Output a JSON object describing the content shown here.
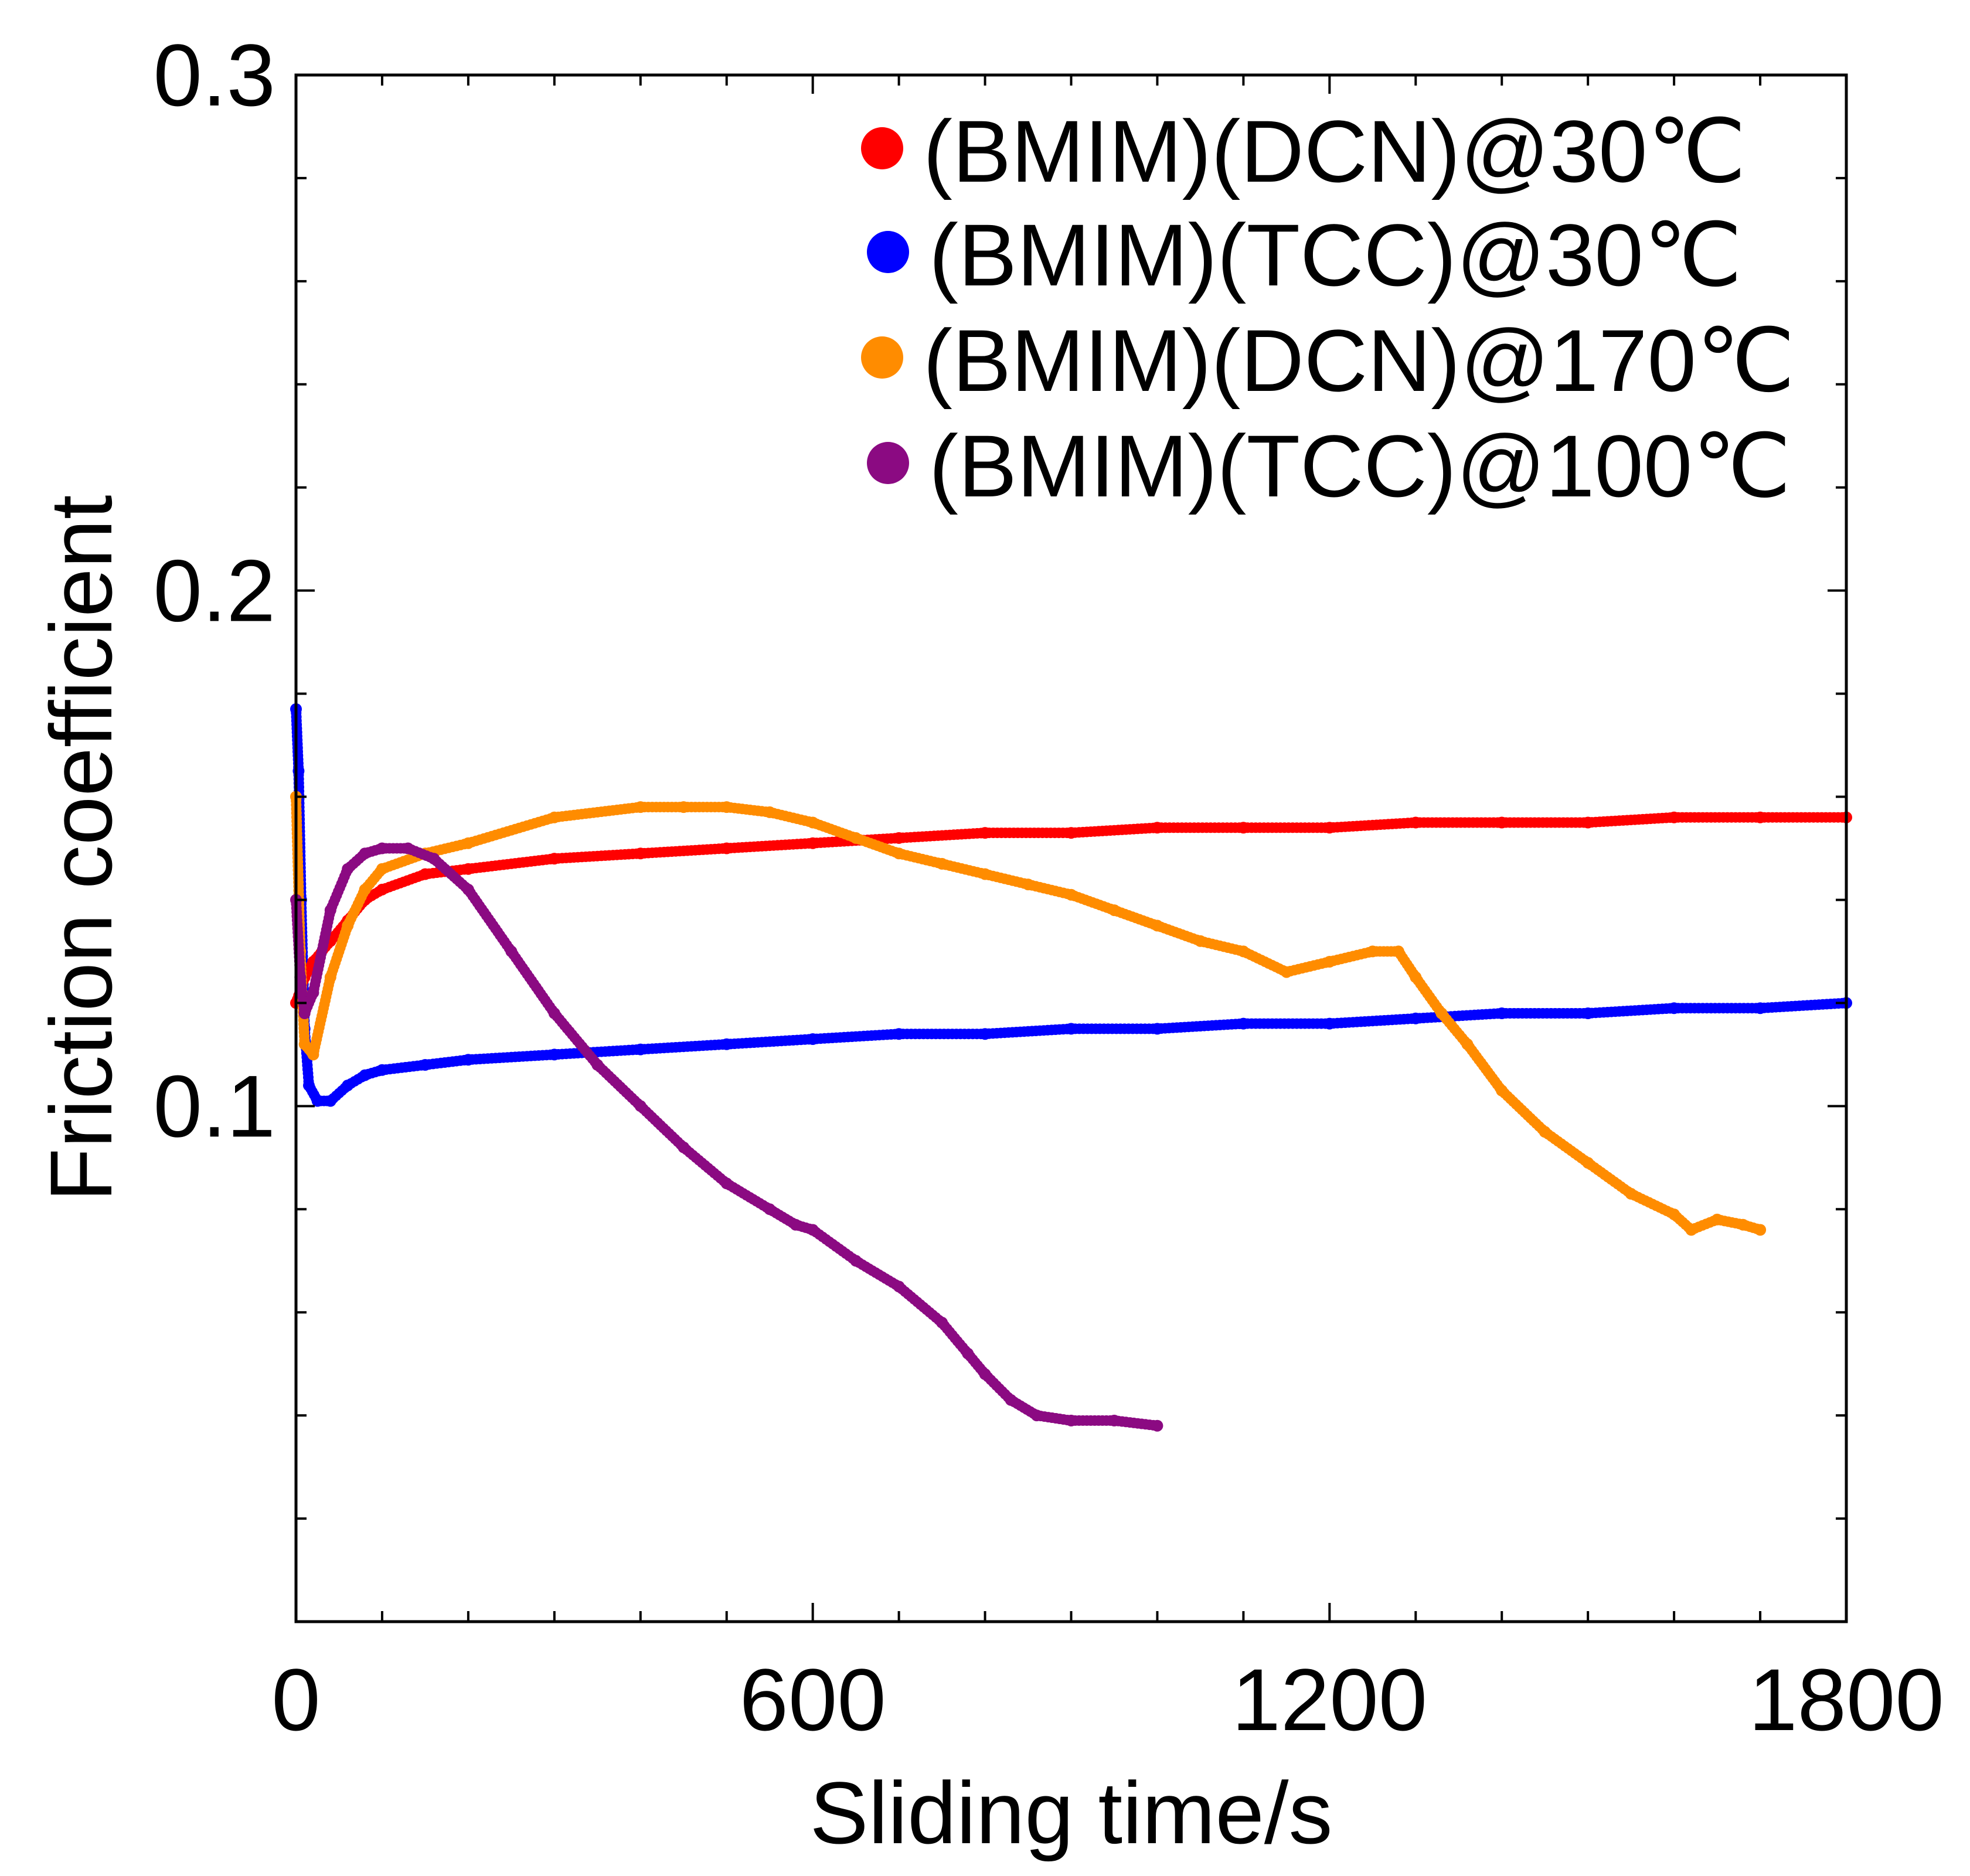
{
  "chart_data": {
    "type": "scatter",
    "title": "",
    "xlabel": "Sliding time/s",
    "ylabel": "Friction coefficient",
    "xlim": [
      0,
      1800
    ],
    "ylim": [
      0.0,
      0.3
    ],
    "x_ticks": [
      0,
      600,
      1200,
      1800
    ],
    "x_tick_labels": [
      "0",
      "600",
      "1200",
      "1800"
    ],
    "y_ticks": [
      0.1,
      0.2,
      0.3
    ],
    "y_tick_labels": [
      "0.1",
      "0.2",
      "0.3"
    ],
    "grid": false,
    "legend_position": "top-right",
    "series": [
      {
        "name": "(BMIM)(DCN)@30℃",
        "color": "#ff0000",
        "points": [
          [
            0,
            0.12
          ],
          [
            10,
            0.125
          ],
          [
            20,
            0.128
          ],
          [
            40,
            0.132
          ],
          [
            60,
            0.136
          ],
          [
            80,
            0.14
          ],
          [
            100,
            0.142
          ],
          [
            150,
            0.145
          ],
          [
            200,
            0.146
          ],
          [
            300,
            0.148
          ],
          [
            400,
            0.149
          ],
          [
            500,
            0.15
          ],
          [
            600,
            0.151
          ],
          [
            700,
            0.152
          ],
          [
            800,
            0.153
          ],
          [
            900,
            0.153
          ],
          [
            1000,
            0.154
          ],
          [
            1100,
            0.154
          ],
          [
            1200,
            0.154
          ],
          [
            1300,
            0.155
          ],
          [
            1400,
            0.155
          ],
          [
            1500,
            0.155
          ],
          [
            1600,
            0.156
          ],
          [
            1700,
            0.156
          ],
          [
            1800,
            0.156
          ]
        ]
      },
      {
        "name": "(BMIM)(TCC)@30℃",
        "color": "#0000ff",
        "points": [
          [
            0,
            0.177
          ],
          [
            3,
            0.165
          ],
          [
            6,
            0.14
          ],
          [
            10,
            0.115
          ],
          [
            15,
            0.104
          ],
          [
            25,
            0.101
          ],
          [
            40,
            0.101
          ],
          [
            60,
            0.104
          ],
          [
            80,
            0.106
          ],
          [
            100,
            0.107
          ],
          [
            150,
            0.108
          ],
          [
            200,
            0.109
          ],
          [
            300,
            0.11
          ],
          [
            400,
            0.111
          ],
          [
            500,
            0.112
          ],
          [
            600,
            0.113
          ],
          [
            700,
            0.114
          ],
          [
            800,
            0.114
          ],
          [
            900,
            0.115
          ],
          [
            1000,
            0.115
          ],
          [
            1100,
            0.116
          ],
          [
            1200,
            0.116
          ],
          [
            1300,
            0.117
          ],
          [
            1400,
            0.118
          ],
          [
            1500,
            0.118
          ],
          [
            1600,
            0.119
          ],
          [
            1700,
            0.119
          ],
          [
            1800,
            0.12
          ]
        ]
      },
      {
        "name": "(BMIM)(DCN)@170℃",
        "color": "#ff8c00",
        "points": [
          [
            0,
            0.16
          ],
          [
            5,
            0.13
          ],
          [
            10,
            0.112
          ],
          [
            20,
            0.11
          ],
          [
            40,
            0.125
          ],
          [
            60,
            0.135
          ],
          [
            80,
            0.142
          ],
          [
            100,
            0.146
          ],
          [
            150,
            0.149
          ],
          [
            200,
            0.151
          ],
          [
            300,
            0.156
          ],
          [
            400,
            0.158
          ],
          [
            450,
            0.158
          ],
          [
            500,
            0.158
          ],
          [
            550,
            0.157
          ],
          [
            600,
            0.155
          ],
          [
            650,
            0.152
          ],
          [
            700,
            0.149
          ],
          [
            750,
            0.147
          ],
          [
            800,
            0.145
          ],
          [
            850,
            0.143
          ],
          [
            900,
            0.141
          ],
          [
            950,
            0.138
          ],
          [
            1000,
            0.135
          ],
          [
            1050,
            0.132
          ],
          [
            1100,
            0.13
          ],
          [
            1150,
            0.126
          ],
          [
            1200,
            0.128
          ],
          [
            1250,
            0.13
          ],
          [
            1280,
            0.13
          ],
          [
            1300,
            0.125
          ],
          [
            1330,
            0.118
          ],
          [
            1360,
            0.112
          ],
          [
            1400,
            0.103
          ],
          [
            1450,
            0.095
          ],
          [
            1500,
            0.089
          ],
          [
            1550,
            0.083
          ],
          [
            1600,
            0.079
          ],
          [
            1620,
            0.076
          ],
          [
            1650,
            0.078
          ],
          [
            1680,
            0.077
          ],
          [
            1700,
            0.076
          ]
        ]
      },
      {
        "name": "(BMIM)(TCC)@100℃",
        "color": "#8b0a82",
        "points": [
          [
            0,
            0.14
          ],
          [
            5,
            0.125
          ],
          [
            10,
            0.118
          ],
          [
            20,
            0.122
          ],
          [
            40,
            0.138
          ],
          [
            60,
            0.146
          ],
          [
            80,
            0.149
          ],
          [
            100,
            0.15
          ],
          [
            130,
            0.15
          ],
          [
            160,
            0.148
          ],
          [
            200,
            0.142
          ],
          [
            250,
            0.13
          ],
          [
            300,
            0.118
          ],
          [
            350,
            0.108
          ],
          [
            400,
            0.1
          ],
          [
            450,
            0.092
          ],
          [
            500,
            0.085
          ],
          [
            550,
            0.08
          ],
          [
            580,
            0.077
          ],
          [
            600,
            0.076
          ],
          [
            650,
            0.07
          ],
          [
            700,
            0.065
          ],
          [
            750,
            0.058
          ],
          [
            780,
            0.052
          ],
          [
            800,
            0.048
          ],
          [
            830,
            0.043
          ],
          [
            860,
            0.04
          ],
          [
            900,
            0.039
          ],
          [
            950,
            0.039
          ],
          [
            1000,
            0.038
          ]
        ]
      }
    ]
  }
}
